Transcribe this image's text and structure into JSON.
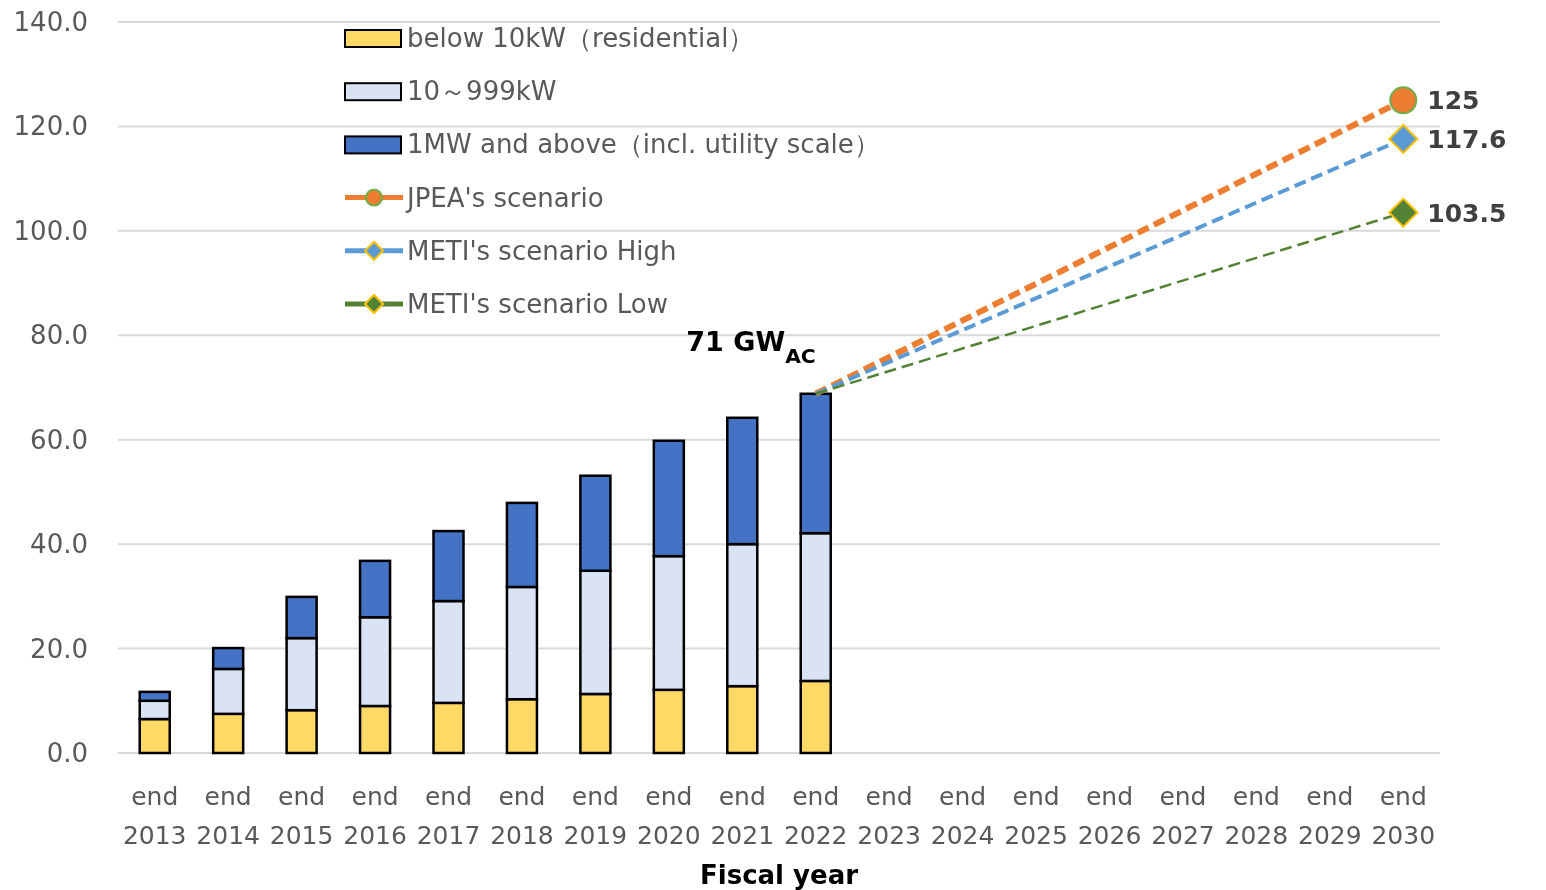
{
  "chart_data": {
    "type": "bar",
    "stacked": true,
    "xlabel": "Fiscal year",
    "categories": [
      "end 2013",
      "end 2014",
      "end 2015",
      "end 2016",
      "end 2017",
      "end 2018",
      "end 2019",
      "end 2020",
      "end 2021",
      "end 2022",
      "end 2023",
      "end 2024",
      "end 2025",
      "end 2026",
      "end 2027",
      "end 2028",
      "end 2029",
      "end 2030"
    ],
    "series": [
      {
        "name": "below 10kW（residential）",
        "color": "#ffd966",
        "values": [
          6.5,
          7.5,
          8.2,
          9.0,
          9.6,
          10.3,
          11.3,
          12.1,
          12.8,
          13.8,
          null,
          null,
          null,
          null,
          null,
          null,
          null,
          null
        ]
      },
      {
        "name": "10～999kW",
        "color": "#dae3f3",
        "values": [
          3.5,
          8.6,
          13.8,
          17.0,
          19.5,
          21.5,
          23.6,
          25.6,
          27.2,
          28.3,
          null,
          null,
          null,
          null,
          null,
          null,
          null,
          null
        ]
      },
      {
        "name": "1MW and above（incl. utility scale）",
        "color": "#4472c4",
        "values": [
          1.7,
          4.0,
          7.9,
          10.8,
          13.4,
          16.1,
          18.2,
          22.1,
          24.2,
          26.7,
          null,
          null,
          null,
          null,
          null,
          null,
          null,
          null
        ]
      },
      {
        "name": "JPEA's scenario",
        "type": "line",
        "color": "#ed7d31",
        "line_style": "dashed",
        "marker": "circle",
        "values": [
          null,
          null,
          null,
          null,
          null,
          null,
          null,
          null,
          null,
          68.8,
          null,
          null,
          null,
          null,
          null,
          null,
          null,
          125
        ],
        "value_labels": [
          null,
          null,
          null,
          null,
          null,
          null,
          null,
          null,
          null,
          null,
          null,
          null,
          null,
          null,
          null,
          null,
          null,
          "125"
        ]
      },
      {
        "name": "METI's scenario High",
        "type": "line",
        "color": "#5b9bd5",
        "line_style": "dashed",
        "marker": "diamond",
        "values": [
          null,
          null,
          null,
          null,
          null,
          null,
          null,
          null,
          null,
          68.8,
          null,
          null,
          null,
          null,
          null,
          null,
          null,
          117.6
        ],
        "value_labels": [
          null,
          null,
          null,
          null,
          null,
          null,
          null,
          null,
          null,
          null,
          null,
          null,
          null,
          null,
          null,
          null,
          null,
          "117.6"
        ]
      },
      {
        "name": "METI's scenario Low",
        "type": "line",
        "color": "#548235",
        "line_style": "dashed",
        "marker": "diamond",
        "values": [
          null,
          null,
          null,
          null,
          null,
          null,
          null,
          null,
          null,
          68.8,
          null,
          null,
          null,
          null,
          null,
          null,
          null,
          103.5
        ],
        "value_labels": [
          null,
          null,
          null,
          null,
          null,
          null,
          null,
          null,
          null,
          null,
          null,
          null,
          null,
          null,
          null,
          null,
          null,
          "103.5"
        ]
      }
    ],
    "ylim": [
      0,
      140
    ],
    "yticks": [
      {
        "value": 0,
        "label": "0.0"
      },
      {
        "value": 20,
        "label": "20.0"
      },
      {
        "value": 40,
        "label": "40.0"
      },
      {
        "value": 60,
        "label": "60.0"
      },
      {
        "value": 80,
        "label": "80.0"
      },
      {
        "value": 100,
        "label": "100.0"
      },
      {
        "value": 120,
        "label": "120.0"
      },
      {
        "value": 140,
        "label": "140.0"
      }
    ],
    "annotations": [
      {
        "text": "71 GW$_{AC}$",
        "x": "end 2022",
        "y": 68.8
      }
    ],
    "grid": "y",
    "legend": "top left"
  }
}
